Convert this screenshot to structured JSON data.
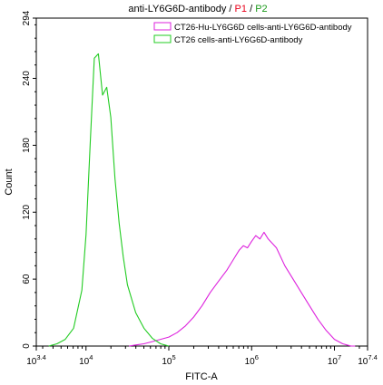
{
  "chart_data": {
    "type": "line",
    "title_parts": [
      {
        "text": "anti-LY6G6D-antibody / ",
        "color": "#000000"
      },
      {
        "text": "P1",
        "color": "#e8001a"
      },
      {
        "text": " / ",
        "color": "#000000"
      },
      {
        "text": "P2",
        "color": "#1a9a1a"
      }
    ],
    "xlabel": "FITC-A",
    "ylabel": "Count",
    "x_scale": "log10",
    "xlim_log10": [
      3.4,
      7.4
    ],
    "ylim": [
      0,
      294
    ],
    "x_ticks": [
      {
        "base": "10",
        "exp": "3.4",
        "log": 3.4
      },
      {
        "base": "10",
        "exp": "4",
        "log": 4
      },
      {
        "base": "10",
        "exp": "5",
        "log": 5
      },
      {
        "base": "10",
        "exp": "6",
        "log": 6
      },
      {
        "base": "10",
        "exp": "7",
        "log": 7
      },
      {
        "base": "10",
        "exp": "7.4",
        "log": 7.4
      }
    ],
    "y_ticks": [
      "0",
      "60",
      "120",
      "180",
      "240",
      "294"
    ],
    "y_tick_values": [
      0,
      60,
      120,
      180,
      240,
      294
    ],
    "legend_position": "top-right",
    "series": [
      {
        "name": "CT26-Hu-LY6G6D cells-anti-LY6G6D-antibody",
        "color": "#dd22dd",
        "log_x": [
          4.52,
          4.6,
          4.7,
          4.8,
          4.9,
          5.0,
          5.1,
          5.2,
          5.3,
          5.4,
          5.5,
          5.6,
          5.7,
          5.8,
          5.85,
          5.9,
          5.95,
          6.0,
          6.05,
          6.1,
          6.15,
          6.2,
          6.3,
          6.4,
          6.5,
          6.6,
          6.7,
          6.8,
          6.9,
          7.0,
          7.1,
          7.2,
          7.25
        ],
        "counts": [
          0,
          1,
          2,
          4,
          6,
          8,
          12,
          18,
          26,
          36,
          48,
          58,
          68,
          80,
          86,
          90,
          88,
          94,
          99,
          96,
          102,
          96,
          88,
          72,
          60,
          48,
          36,
          24,
          14,
          6,
          2,
          0,
          0
        ]
      },
      {
        "name": "CT26 cells-anti-LY6G6D-antibody",
        "color": "#22cc22",
        "log_x": [
          3.55,
          3.65,
          3.75,
          3.85,
          3.95,
          4.0,
          4.05,
          4.1,
          4.15,
          4.2,
          4.25,
          4.3,
          4.35,
          4.4,
          4.45,
          4.5,
          4.6,
          4.7,
          4.8,
          4.9,
          5.0
        ],
        "counts": [
          0,
          2,
          6,
          16,
          50,
          100,
          180,
          258,
          262,
          225,
          232,
          205,
          150,
          110,
          80,
          55,
          30,
          16,
          7,
          2,
          0
        ]
      }
    ]
  }
}
